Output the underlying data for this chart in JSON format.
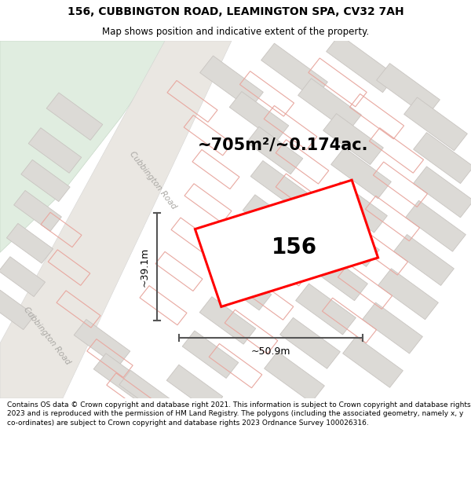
{
  "title_line1": "156, CUBBINGTON ROAD, LEAMINGTON SPA, CV32 7AH",
  "title_line2": "Map shows position and indicative extent of the property.",
  "area_text": "~705m²/~0.174ac.",
  "label_156": "156",
  "dim_height": "~39.1m",
  "dim_width": "~50.9m",
  "road_label": "Cubbington Road",
  "road_label2": "Cubbington Road",
  "footer_text": "Contains OS data © Crown copyright and database right 2021. This information is subject to Crown copyright and database rights 2023 and is reproduced with the permission of HM Land Registry. The polygons (including the associated geometry, namely x, y co-ordinates) are subject to Crown copyright and database rights 2023 Ordnance Survey 100026316.",
  "map_bg": "#f0eeeb",
  "green_color": "#e0ede0",
  "road_band_color": "#e8e5e0",
  "block_color": "#dcdad6",
  "block_edge": "#c8c4c0",
  "pink_line_color": "#e8a8a0",
  "plot_color": "#ff0000",
  "dim_line_color": "#555555",
  "white": "#ffffff",
  "title_bg": "#ffffff",
  "footer_bg": "#ffffff",
  "title_fontsize": 10,
  "subtitle_fontsize": 8.5,
  "area_fontsize": 15,
  "label_fontsize": 20,
  "dim_fontsize": 9,
  "footer_fontsize": 6.5
}
